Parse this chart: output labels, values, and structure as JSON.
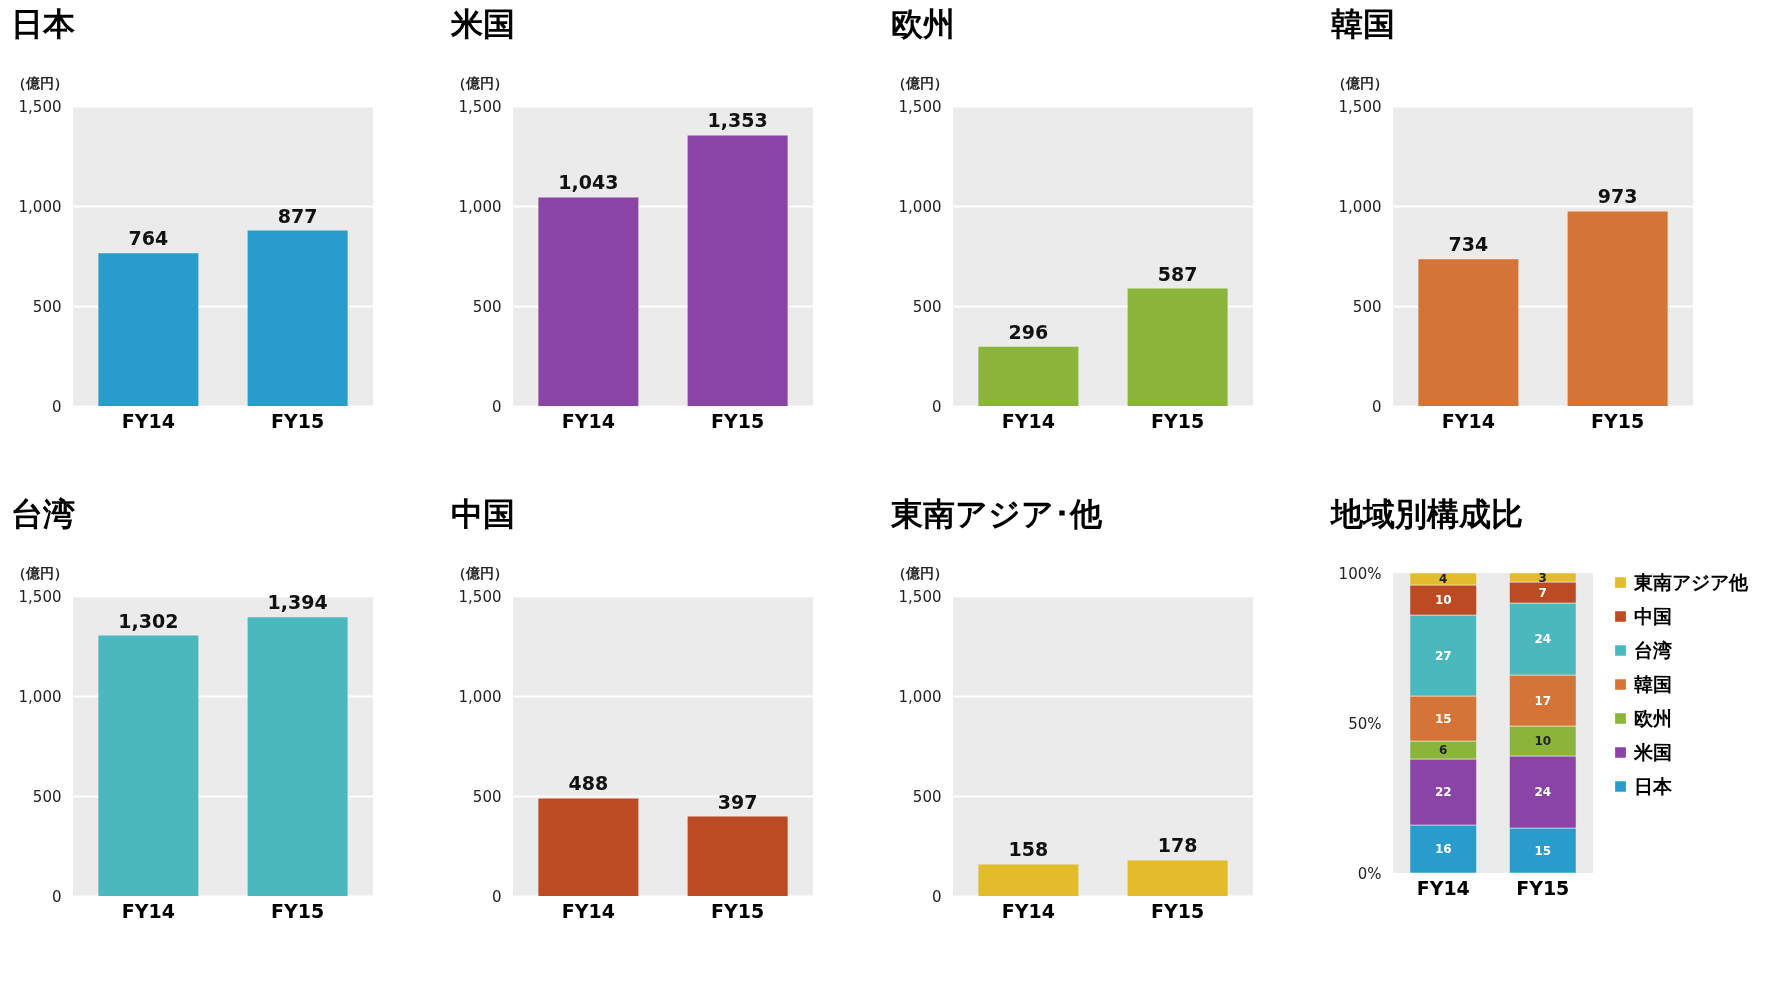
{
  "chart_data": [
    {
      "type": "bar",
      "title": "日本",
      "ylabel": "（億円）",
      "categories": [
        "FY14",
        "FY15"
      ],
      "values": [
        764,
        877
      ],
      "value_labels": [
        "764",
        "877"
      ],
      "color": "#2a9ccc",
      "ylim": [
        0,
        1500
      ],
      "yticks": [
        {
          "value": 0,
          "label": "0"
        },
        {
          "value": 500,
          "label": "500"
        },
        {
          "value": 1000,
          "label": "1,000"
        },
        {
          "value": 1500,
          "label": "1,500"
        }
      ],
      "grid": "y"
    },
    {
      "type": "bar",
      "title": "米国",
      "ylabel": "（億円）",
      "categories": [
        "FY14",
        "FY15"
      ],
      "values": [
        1043,
        1353
      ],
      "value_labels": [
        "1,043",
        "1,353"
      ],
      "color": "#8a44a6",
      "ylim": [
        0,
        1500
      ],
      "yticks": [
        {
          "value": 0,
          "label": "0"
        },
        {
          "value": 500,
          "label": "500"
        },
        {
          "value": 1000,
          "label": "1,000"
        },
        {
          "value": 1500,
          "label": "1,500"
        }
      ],
      "grid": "y"
    },
    {
      "type": "bar",
      "title": "欧州",
      "ylabel": "（億円）",
      "categories": [
        "FY14",
        "FY15"
      ],
      "values": [
        296,
        587
      ],
      "value_labels": [
        "296",
        "587"
      ],
      "color": "#8ab43a",
      "ylim": [
        0,
        1500
      ],
      "yticks": [
        {
          "value": 0,
          "label": "0"
        },
        {
          "value": 500,
          "label": "500"
        },
        {
          "value": 1000,
          "label": "1,000"
        },
        {
          "value": 1500,
          "label": "1,500"
        }
      ],
      "grid": "y"
    },
    {
      "type": "bar",
      "title": "韓国",
      "ylabel": "（億円）",
      "categories": [
        "FY14",
        "FY15"
      ],
      "values": [
        734,
        973
      ],
      "value_labels": [
        "734",
        "973"
      ],
      "color": "#d47436",
      "ylim": [
        0,
        1500
      ],
      "yticks": [
        {
          "value": 0,
          "label": "0"
        },
        {
          "value": 500,
          "label": "500"
        },
        {
          "value": 1000,
          "label": "1,000"
        },
        {
          "value": 1500,
          "label": "1,500"
        }
      ],
      "grid": "y"
    },
    {
      "type": "bar",
      "title": "台湾",
      "ylabel": "（億円）",
      "categories": [
        "FY14",
        "FY15"
      ],
      "values": [
        1302,
        1394
      ],
      "value_labels": [
        "1,302",
        "1,394"
      ],
      "color": "#4ab8bc",
      "ylim": [
        0,
        1500
      ],
      "yticks": [
        {
          "value": 0,
          "label": "0"
        },
        {
          "value": 500,
          "label": "500"
        },
        {
          "value": 1000,
          "label": "1,000"
        },
        {
          "value": 1500,
          "label": "1,500"
        }
      ],
      "grid": "y"
    },
    {
      "type": "bar",
      "title": "中国",
      "ylabel": "（億円）",
      "categories": [
        "FY14",
        "FY15"
      ],
      "values": [
        488,
        397
      ],
      "value_labels": [
        "488",
        "397"
      ],
      "color": "#bc4a22",
      "ylim": [
        0,
        1500
      ],
      "yticks": [
        {
          "value": 0,
          "label": "0"
        },
        {
          "value": 500,
          "label": "500"
        },
        {
          "value": 1000,
          "label": "1,000"
        },
        {
          "value": 1500,
          "label": "1,500"
        }
      ],
      "grid": "y"
    },
    {
      "type": "bar",
      "title": "東南アジア･他",
      "ylabel": "（億円）",
      "categories": [
        "FY14",
        "FY15"
      ],
      "values": [
        158,
        178
      ],
      "value_labels": [
        "158",
        "178"
      ],
      "color": "#e2bc2c",
      "ylim": [
        0,
        1500
      ],
      "yticks": [
        {
          "value": 0,
          "label": "0"
        },
        {
          "value": 500,
          "label": "500"
        },
        {
          "value": 1000,
          "label": "1,000"
        },
        {
          "value": 1500,
          "label": "1,500"
        }
      ],
      "grid": "y"
    },
    {
      "type": "bar",
      "title": "地域別構成比",
      "categories": [
        "FY14",
        "FY15"
      ],
      "stacked": true,
      "ylim": [
        0,
        100
      ],
      "yticks": [
        {
          "value": 0,
          "label": "0%"
        },
        {
          "value": 50,
          "label": "50%"
        },
        {
          "value": 100,
          "label": "100%"
        }
      ],
      "grid": false,
      "data_labels": true,
      "legend": "right",
      "series": [
        {
          "name": "日本",
          "color": "#2a9ccc",
          "values": [
            16,
            15
          ]
        },
        {
          "name": "米国",
          "color": "#8a44a6",
          "values": [
            22,
            24
          ]
        },
        {
          "name": "欧州",
          "color": "#8ab43a",
          "values": [
            6,
            10
          ]
        },
        {
          "name": "韓国",
          "color": "#d47436",
          "values": [
            15,
            17
          ]
        },
        {
          "name": "台湾",
          "color": "#4ab8bc",
          "values": [
            27,
            24
          ]
        },
        {
          "name": "中国",
          "color": "#bc4a22",
          "values": [
            10,
            7
          ]
        },
        {
          "name": "東南アジア他",
          "color": "#e2bc2c",
          "values": [
            4,
            3
          ]
        }
      ]
    }
  ]
}
